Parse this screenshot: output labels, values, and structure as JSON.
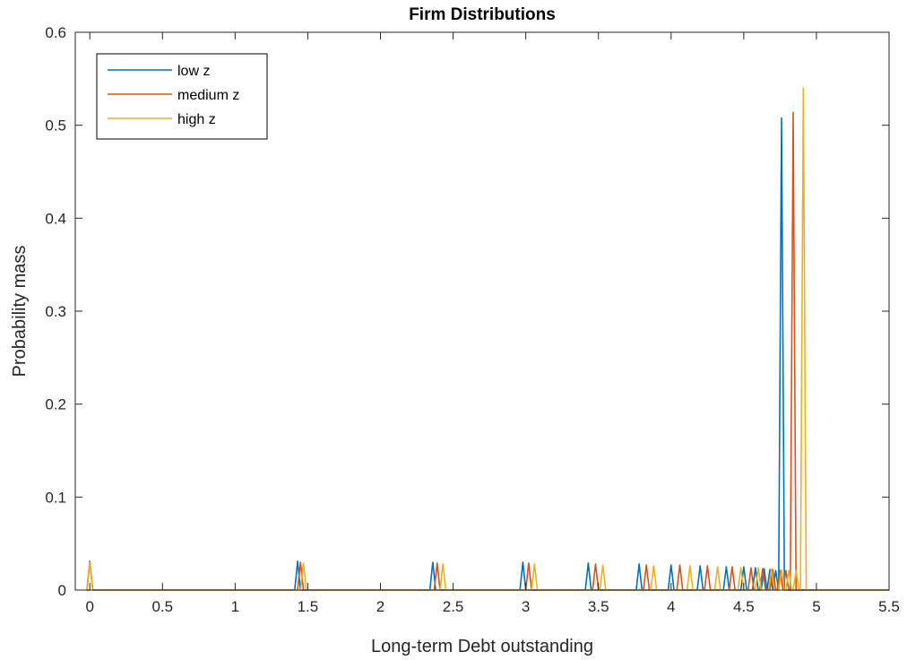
{
  "chart_data": {
    "type": "line",
    "title": "Firm Distributions",
    "xlabel": "Long-term Debt outstanding",
    "ylabel": "Probability mass",
    "xlim": [
      -0.1,
      5.5
    ],
    "ylim": [
      0,
      0.6
    ],
    "xticks": [
      0,
      0.5,
      1,
      1.5,
      2,
      2.5,
      3,
      3.5,
      4,
      4.5,
      5,
      5.5
    ],
    "xtick_labels": [
      "0",
      "0.5",
      "1",
      "1.5",
      "2",
      "2.5",
      "3",
      "3.5",
      "4",
      "4.5",
      "5",
      "5.5"
    ],
    "yticks": [
      0,
      0.1,
      0.2,
      0.3,
      0.4,
      0.5,
      0.6
    ],
    "ytick_labels": [
      "0",
      "0.1",
      "0.2",
      "0.3",
      "0.4",
      "0.5",
      "0.6"
    ],
    "grid": false,
    "legend_position": "top-left",
    "series": [
      {
        "name": "low z",
        "color": "#0072BD",
        "spikes": [
          [
            0.0,
            0.031
          ],
          [
            1.43,
            0.031
          ],
          [
            2.36,
            0.03
          ],
          [
            2.98,
            0.03
          ],
          [
            3.43,
            0.029
          ],
          [
            3.78,
            0.028
          ],
          [
            4.0,
            0.027
          ],
          [
            4.2,
            0.026
          ],
          [
            4.38,
            0.025
          ],
          [
            4.5,
            0.025
          ],
          [
            4.58,
            0.024
          ],
          [
            4.64,
            0.023
          ],
          [
            4.68,
            0.022
          ],
          [
            4.72,
            0.021
          ],
          [
            4.76,
            0.508
          ]
        ]
      },
      {
        "name": "medium z",
        "color": "#D95319",
        "spikes": [
          [
            0.0,
            0.03
          ],
          [
            1.45,
            0.03
          ],
          [
            2.39,
            0.029
          ],
          [
            3.02,
            0.029
          ],
          [
            3.48,
            0.028
          ],
          [
            3.83,
            0.027
          ],
          [
            4.06,
            0.027
          ],
          [
            4.25,
            0.026
          ],
          [
            4.42,
            0.025
          ],
          [
            4.55,
            0.024
          ],
          [
            4.63,
            0.023
          ],
          [
            4.7,
            0.022
          ],
          [
            4.75,
            0.021
          ],
          [
            4.79,
            0.021
          ],
          [
            4.84,
            0.514
          ]
        ]
      },
      {
        "name": "high z",
        "color": "#EDB120",
        "spikes": [
          [
            0.0,
            0.03
          ],
          [
            1.47,
            0.029
          ],
          [
            2.43,
            0.028
          ],
          [
            3.06,
            0.028
          ],
          [
            3.53,
            0.027
          ],
          [
            3.88,
            0.026
          ],
          [
            4.13,
            0.026
          ],
          [
            4.32,
            0.025
          ],
          [
            4.48,
            0.024
          ],
          [
            4.6,
            0.024
          ],
          [
            4.69,
            0.023
          ],
          [
            4.76,
            0.022
          ],
          [
            4.81,
            0.021
          ],
          [
            4.86,
            0.021
          ],
          [
            4.91,
            0.54
          ]
        ]
      }
    ]
  }
}
